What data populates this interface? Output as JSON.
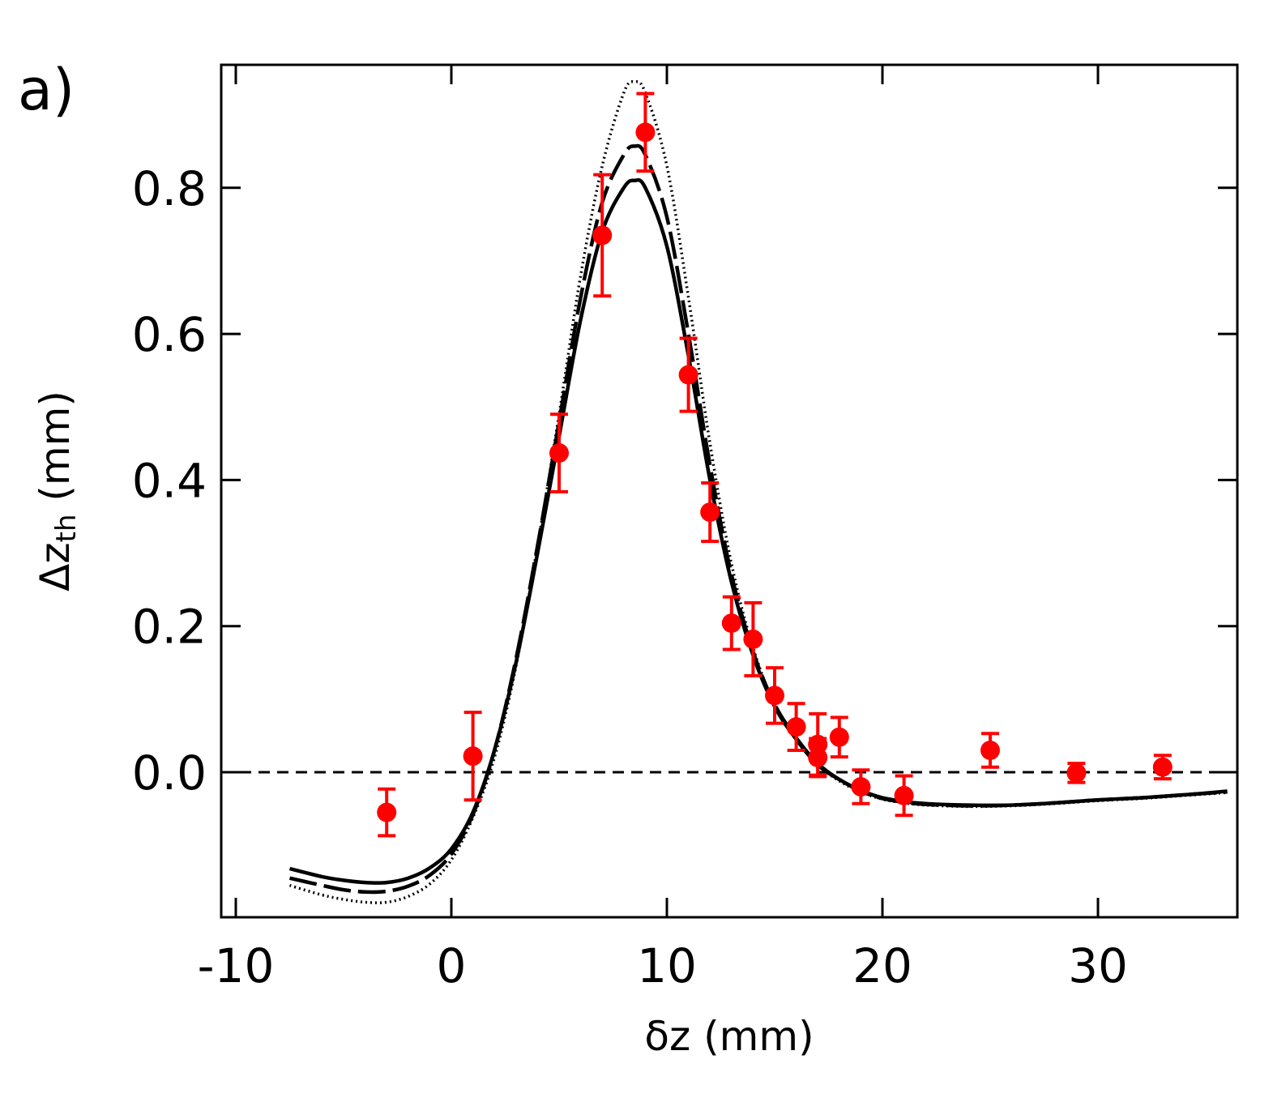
{
  "chart_data": {
    "type": "scatter",
    "panel_label": "a)",
    "xlabel": "δz (mm)",
    "ylabel_main": "Δz",
    "ylabel_sub": "th",
    "ylabel_unit": " (mm)",
    "xlim": [
      -10.5,
      36.5
    ],
    "ylim": [
      -0.2,
      0.97
    ],
    "xticks": [
      -10,
      0,
      10,
      20,
      30
    ],
    "xtick_labels": [
      "-10",
      "0",
      "10",
      "20",
      "30"
    ],
    "yticks": [
      0.0,
      0.2,
      0.4,
      0.6,
      0.8
    ],
    "ytick_labels": [
      "0.0",
      "0.2",
      "0.4",
      "0.6",
      "0.8"
    ],
    "reference_line": {
      "y": 0.0,
      "style": "dashed"
    },
    "points_color": "#ff0000",
    "points": [
      {
        "x": -3,
        "y": -0.055,
        "err": 0.032
      },
      {
        "x": 1,
        "y": 0.022,
        "err": 0.06
      },
      {
        "x": 5,
        "y": 0.437,
        "err": 0.053
      },
      {
        "x": 7,
        "y": 0.735,
        "err": 0.083
      },
      {
        "x": 9,
        "y": 0.876,
        "err": 0.053
      },
      {
        "x": 11,
        "y": 0.544,
        "err": 0.05
      },
      {
        "x": 12,
        "y": 0.356,
        "err": 0.04
      },
      {
        "x": 13,
        "y": 0.204,
        "err": 0.036
      },
      {
        "x": 14,
        "y": 0.182,
        "err": 0.05
      },
      {
        "x": 15,
        "y": 0.105,
        "err": 0.038
      },
      {
        "x": 16,
        "y": 0.062,
        "err": 0.032
      },
      {
        "x": 17,
        "y": 0.02,
        "err": 0.026
      },
      {
        "x": 17,
        "y": 0.038,
        "err": 0.042
      },
      {
        "x": 18,
        "y": 0.048,
        "err": 0.027
      },
      {
        "x": 19,
        "y": -0.02,
        "err": 0.023
      },
      {
        "x": 21,
        "y": -0.032,
        "err": 0.027
      },
      {
        "x": 25,
        "y": 0.03,
        "err": 0.023
      },
      {
        "x": 29,
        "y": -0.001,
        "err": 0.013
      },
      {
        "x": 33,
        "y": 0.007,
        "err": 0.016
      }
    ],
    "series": [
      {
        "name": "solid",
        "style": "solid",
        "x": [
          -7.5,
          -6,
          -5,
          -4,
          -3,
          -2,
          -1,
          0,
          1,
          2,
          3,
          4,
          5,
          6,
          7,
          8,
          8.5,
          9,
          10,
          11,
          12,
          13,
          14,
          15,
          16,
          17,
          18,
          19,
          20,
          21,
          22,
          24,
          26,
          28,
          30,
          32,
          34,
          36
        ],
        "y": [
          -0.132,
          -0.143,
          -0.148,
          -0.151,
          -0.151,
          -0.145,
          -0.131,
          -0.105,
          -0.055,
          0.03,
          0.15,
          0.3,
          0.46,
          0.62,
          0.74,
          0.8,
          0.81,
          0.8,
          0.72,
          0.57,
          0.4,
          0.26,
          0.16,
          0.09,
          0.045,
          0.01,
          -0.01,
          -0.025,
          -0.035,
          -0.04,
          -0.043,
          -0.045,
          -0.045,
          -0.042,
          -0.038,
          -0.035,
          -0.031,
          -0.026
        ]
      },
      {
        "name": "dashed",
        "style": "dashed",
        "x": [
          -7.5,
          -6,
          -5,
          -4,
          -3,
          -2,
          -1,
          0,
          1,
          2,
          3,
          4,
          5,
          6,
          7,
          8,
          8.5,
          9,
          10,
          11,
          12,
          13,
          14,
          15,
          16,
          17,
          18,
          19,
          20,
          21,
          22,
          24,
          26,
          28,
          30,
          32,
          34,
          36
        ],
        "y": [
          -0.145,
          -0.155,
          -0.161,
          -0.164,
          -0.163,
          -0.156,
          -0.141,
          -0.112,
          -0.058,
          0.03,
          0.155,
          0.31,
          0.48,
          0.65,
          0.78,
          0.845,
          0.857,
          0.845,
          0.76,
          0.6,
          0.42,
          0.27,
          0.165,
          0.093,
          0.047,
          0.012,
          -0.01,
          -0.026,
          -0.036,
          -0.041,
          -0.044,
          -0.046,
          -0.045,
          -0.042,
          -0.038,
          -0.035,
          -0.031,
          -0.027
        ]
      },
      {
        "name": "dotted",
        "style": "dotted",
        "x": [
          -7.5,
          -6,
          -5,
          -4,
          -3,
          -2,
          -1,
          0,
          1,
          2,
          3,
          4,
          5,
          6,
          7,
          8,
          8.5,
          9,
          10,
          11,
          12,
          13,
          14,
          15,
          16,
          17,
          18,
          19,
          20,
          21,
          22,
          24,
          26,
          28,
          30,
          32,
          34,
          36
        ],
        "y": [
          -0.155,
          -0.168,
          -0.174,
          -0.178,
          -0.178,
          -0.17,
          -0.153,
          -0.12,
          -0.062,
          0.02,
          0.145,
          0.31,
          0.49,
          0.68,
          0.83,
          0.93,
          0.945,
          0.93,
          0.83,
          0.65,
          0.45,
          0.285,
          0.17,
          0.093,
          0.045,
          0.01,
          -0.012,
          -0.027,
          -0.037,
          -0.042,
          -0.045,
          -0.047,
          -0.046,
          -0.043,
          -0.039,
          -0.036,
          -0.032,
          -0.028
        ]
      }
    ]
  }
}
